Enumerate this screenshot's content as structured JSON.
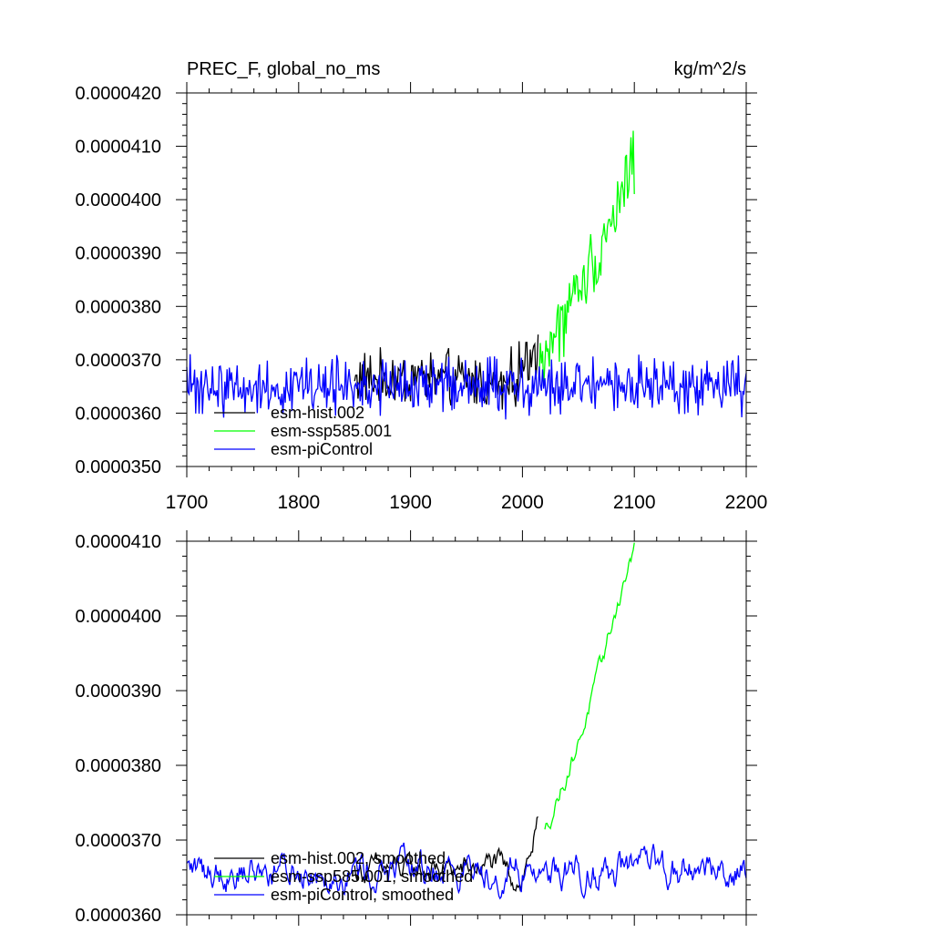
{
  "chart_data": [
    {
      "type": "line",
      "title": "PREC_F, global_no_ms",
      "units": "kg/m^2/s",
      "xlim": [
        1700,
        2200
      ],
      "ylim": [
        3.5e-05,
        4.2e-05
      ],
      "xticks": [
        1700,
        1800,
        1900,
        2000,
        2100,
        2200
      ],
      "xtick_labels": [
        "1700",
        "1800",
        "1900",
        "2000",
        "2100",
        "2200"
      ],
      "yticks": [
        3.5e-05,
        3.6e-05,
        3.7e-05,
        3.8e-05,
        3.9e-05,
        4e-05,
        4.1e-05,
        4.2e-05
      ],
      "ytick_labels": [
        "0.0000350",
        "0.0000360",
        "0.0000370",
        "0.0000380",
        "0.0000390",
        "0.0000400",
        "0.0000410",
        "0.0000420"
      ],
      "legend": {
        "position": "bottom-left"
      },
      "series": [
        {
          "name": "esm-hist.002",
          "color": "#000000",
          "x_range": [
            1850,
            2014
          ],
          "anchors": [
            [
              1850,
              3.665e-05
            ],
            [
              1880,
              3.66e-05
            ],
            [
              1910,
              3.67e-05
            ],
            [
              1940,
              3.66e-05
            ],
            [
              1960,
              3.66e-05
            ],
            [
              1980,
              3.65e-05
            ],
            [
              1995,
              3.67e-05
            ],
            [
              2005,
              3.7e-05
            ],
            [
              2014,
              3.73e-05
            ]
          ],
          "noise": 4e-07
        },
        {
          "name": "esm-ssp585.001",
          "color": "#00ff00",
          "x_range": [
            2015,
            2100
          ],
          "anchors": [
            [
              2015,
              3.69e-05
            ],
            [
              2030,
              3.75e-05
            ],
            [
              2045,
              3.81e-05
            ],
            [
              2060,
              3.87e-05
            ],
            [
              2075,
              3.94e-05
            ],
            [
              2090,
              4.02e-05
            ],
            [
              2100,
              4.08e-05
            ]
          ],
          "noise": 5e-07
        },
        {
          "name": "esm-piControl",
          "color": "#0000ff",
          "x_range": [
            1700,
            2200
          ],
          "anchors": [
            [
              1700,
              3.65e-05
            ],
            [
              2200,
              3.65e-05
            ]
          ],
          "noise": 4e-07
        }
      ]
    },
    {
      "type": "line",
      "xlim": [
        1700,
        2200
      ],
      "ylim": [
        3.6e-05,
        4.1e-05
      ],
      "xticks": [
        1700,
        1800,
        1900,
        2000,
        2100,
        2200
      ],
      "yticks": [
        3.6e-05,
        3.7e-05,
        3.8e-05,
        3.9e-05,
        4e-05,
        4.1e-05
      ],
      "ytick_labels": [
        "0.0000360",
        "0.0000370",
        "0.0000380",
        "0.0000390",
        "0.0000400",
        "0.0000410"
      ],
      "legend": {
        "position": "bottom-left"
      },
      "series": [
        {
          "name": "esm-hist.002, smoothed",
          "color": "#000000",
          "x_range": [
            1850,
            2014
          ],
          "anchors": [
            [
              1850,
              3.66e-05
            ],
            [
              1900,
              3.66e-05
            ],
            [
              1950,
              3.66e-05
            ],
            [
              1975,
              3.67e-05
            ],
            [
              1990,
              3.65e-05
            ],
            [
              2000,
              3.65e-05
            ],
            [
              2008,
              3.69e-05
            ],
            [
              2014,
              3.72e-05
            ]
          ],
          "noise": 1.2e-07
        },
        {
          "name": "esm-ssp585.001, smoothed",
          "color": "#00ff00",
          "x_range": [
            2020,
            2100
          ],
          "anchors": [
            [
              2020,
              3.71e-05
            ],
            [
              2030,
              3.75e-05
            ],
            [
              2040,
              3.79e-05
            ],
            [
              2050,
              3.83e-05
            ],
            [
              2060,
              3.88e-05
            ],
            [
              2070,
              3.93e-05
            ],
            [
              2080,
              3.99e-05
            ],
            [
              2090,
              4.04e-05
            ],
            [
              2100,
              4.09e-05
            ]
          ],
          "noise": 8e-08
        },
        {
          "name": "esm-piControl, smoothed",
          "color": "#0000ff",
          "x_range": [
            1700,
            2200
          ],
          "anchors": [
            [
              1700,
              3.66e-05
            ],
            [
              2200,
              3.66e-05
            ]
          ],
          "noise": 1.6e-07
        }
      ]
    }
  ]
}
